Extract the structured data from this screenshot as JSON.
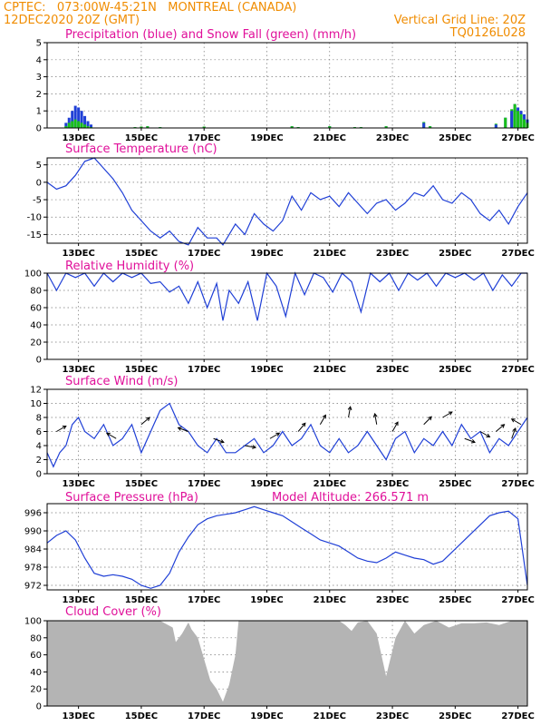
{
  "header": {
    "line1_left": "CPTEC:   073:00W-45:21N   MONTREAL (CANADA)",
    "line2_left": "12DEC2020 20Z (GMT)",
    "line2_right": "Vertical Grid Line: 20Z",
    "line3_right": "TQ0126L028"
  },
  "colors": {
    "header": "#f08c00",
    "title": "#e0109a",
    "line": "#1f3fd6",
    "precip": "#1f3fd6",
    "snow": "#18c018",
    "cloud": "#b4b4b4",
    "arrow": "#000000"
  },
  "x_ticks": [
    "13DEC",
    "15DEC",
    "17DEC",
    "19DEC",
    "21DEC",
    "23DEC",
    "25DEC",
    "27DEC"
  ],
  "chart_data": [
    {
      "type": "bar",
      "title": "Precipitation (blue) and Snow Fall (green) (mm/h)",
      "ylim": [
        0,
        5
      ],
      "yticks": [
        "0",
        "1",
        "2",
        "3",
        "4",
        "5"
      ],
      "x": [
        0.6,
        0.7,
        0.8,
        0.9,
        1.0,
        1.1,
        1.2,
        1.3,
        1.4,
        2.8,
        3.0,
        3.2,
        3.6,
        5.0,
        7.8,
        8.0,
        9.0,
        9.8,
        10.0,
        10.8,
        12.0,
        12.2,
        14.3,
        14.6,
        14.8,
        14.9,
        15.0,
        15.1,
        15.2,
        15.3
      ],
      "series": [
        {
          "name": "Precipitation",
          "values": [
            0.3,
            0.6,
            1.0,
            1.3,
            1.2,
            1.0,
            0.7,
            0.4,
            0.2,
            0.05,
            0.08,
            0.1,
            0.05,
            0.08,
            0.1,
            0.05,
            0.1,
            0.05,
            0.05,
            0.1,
            0.3,
            0.1,
            0.2,
            0.6,
            1.0,
            1.4,
            1.2,
            1.0,
            0.8,
            0.5
          ]
        },
        {
          "name": "Snow Fall",
          "values": [
            0.1,
            0.3,
            0.4,
            0.5,
            0.4,
            0.3,
            0.2,
            0.1,
            0.05,
            0.05,
            0.08,
            0.1,
            0.05,
            0.08,
            0.1,
            0.05,
            0.1,
            0.05,
            0.05,
            0.1,
            0.35,
            0.1,
            0.25,
            0.6,
            1.1,
            1.4,
            1.0,
            0.8,
            0.5,
            0.3
          ]
        }
      ]
    },
    {
      "type": "line",
      "title": "Surface Temperature (nC)",
      "ylim": [
        -17.5,
        7
      ],
      "yticks": [
        "5",
        "0",
        "-5",
        "-10",
        "-15"
      ],
      "x": [
        0.0,
        0.3,
        0.6,
        0.9,
        1.2,
        1.5,
        1.8,
        2.1,
        2.4,
        2.7,
        3.0,
        3.3,
        3.6,
        3.9,
        4.2,
        4.5,
        4.8,
        5.1,
        5.4,
        5.6,
        5.8,
        6.0,
        6.3,
        6.6,
        6.9,
        7.2,
        7.5,
        7.8,
        8.1,
        8.4,
        8.7,
        9.0,
        9.3,
        9.6,
        9.9,
        10.2,
        10.5,
        10.8,
        11.1,
        11.4,
        11.7,
        12.0,
        12.3,
        12.6,
        12.9,
        13.2,
        13.5,
        13.8,
        14.1,
        14.4,
        14.7,
        15.0,
        15.3
      ],
      "values": [
        0,
        -2,
        -1,
        2,
        6,
        7,
        4,
        1,
        -3,
        -8,
        -11,
        -14,
        -16,
        -14,
        -17,
        -18,
        -13,
        -16,
        -16,
        -18,
        -15,
        -12,
        -15,
        -9,
        -12,
        -14,
        -11,
        -4,
        -8,
        -3,
        -5,
        -4,
        -7,
        -3,
        -6,
        -9,
        -6,
        -5,
        -8,
        -6,
        -3,
        -4,
        -1,
        -5,
        -6,
        -3,
        -5,
        -9,
        -11,
        -8,
        -12,
        -7,
        -3
      ]
    },
    {
      "type": "line",
      "title": "Relative Humidity (%)",
      "ylim": [
        0,
        100
      ],
      "yticks": [
        "0",
        "20",
        "40",
        "60",
        "80",
        "100"
      ],
      "x": [
        0.0,
        0.3,
        0.6,
        0.9,
        1.2,
        1.5,
        1.8,
        2.1,
        2.4,
        2.7,
        3.0,
        3.3,
        3.6,
        3.9,
        4.2,
        4.5,
        4.8,
        5.1,
        5.4,
        5.6,
        5.8,
        6.1,
        6.4,
        6.7,
        7.0,
        7.3,
        7.6,
        7.9,
        8.2,
        8.5,
        8.8,
        9.1,
        9.4,
        9.7,
        10.0,
        10.3,
        10.6,
        10.9,
        11.2,
        11.5,
        11.8,
        12.1,
        12.4,
        12.7,
        13.0,
        13.3,
        13.6,
        13.9,
        14.2,
        14.5,
        14.8,
        15.1,
        15.3
      ],
      "values": [
        100,
        80,
        100,
        95,
        100,
        85,
        100,
        90,
        100,
        95,
        100,
        88,
        90,
        78,
        85,
        65,
        90,
        60,
        88,
        45,
        80,
        65,
        90,
        45,
        100,
        85,
        50,
        100,
        75,
        100,
        95,
        78,
        100,
        90,
        55,
        100,
        90,
        100,
        80,
        100,
        92,
        100,
        85,
        100,
        95,
        100,
        92,
        100,
        80,
        98,
        85,
        100,
        100
      ]
    },
    {
      "type": "line",
      "title": "Surface Wind (m/s)",
      "ylim": [
        0,
        12
      ],
      "yticks": [
        "0",
        "2",
        "4",
        "6",
        "8",
        "10",
        "12"
      ],
      "x": [
        0.0,
        0.2,
        0.4,
        0.6,
        0.8,
        1.0,
        1.2,
        1.5,
        1.8,
        2.1,
        2.4,
        2.7,
        3.0,
        3.3,
        3.6,
        3.9,
        4.2,
        4.5,
        4.8,
        5.1,
        5.4,
        5.7,
        6.0,
        6.3,
        6.6,
        6.9,
        7.2,
        7.5,
        7.8,
        8.1,
        8.4,
        8.7,
        9.0,
        9.3,
        9.6,
        9.9,
        10.2,
        10.5,
        10.8,
        11.1,
        11.4,
        11.7,
        12.0,
        12.3,
        12.6,
        12.9,
        13.2,
        13.5,
        13.8,
        14.1,
        14.4,
        14.7,
        15.0,
        15.3
      ],
      "values": [
        3,
        1,
        3,
        4,
        7,
        8,
        6,
        5,
        7,
        4,
        5,
        7,
        3,
        6,
        9,
        10,
        7,
        6,
        4,
        3,
        5,
        3,
        3,
        4,
        5,
        3,
        4,
        6,
        4,
        5,
        7,
        4,
        3,
        5,
        3,
        4,
        6,
        4,
        2,
        5,
        6,
        3,
        5,
        4,
        6,
        4,
        7,
        5,
        6,
        3,
        5,
        4,
        6,
        8
      ]
    },
    {
      "type": "line",
      "title": "Surface Pressure (hPa)",
      "annotation": "Model Altitude: 266.571 m",
      "ylim": [
        970.5,
        999
      ],
      "yticks": [
        "996",
        "990",
        "984",
        "978",
        "972"
      ],
      "x": [
        0.0,
        0.3,
        0.6,
        0.9,
        1.2,
        1.5,
        1.8,
        2.1,
        2.4,
        2.7,
        3.0,
        3.3,
        3.6,
        3.9,
        4.2,
        4.5,
        4.8,
        5.1,
        5.4,
        5.7,
        6.0,
        6.3,
        6.6,
        6.9,
        7.2,
        7.5,
        7.8,
        8.1,
        8.4,
        8.7,
        9.0,
        9.3,
        9.6,
        9.9,
        10.2,
        10.5,
        10.8,
        11.1,
        11.4,
        11.7,
        12.0,
        12.3,
        12.6,
        12.9,
        13.2,
        13.5,
        13.8,
        14.1,
        14.4,
        14.7,
        15.0,
        15.3
      ],
      "values": [
        986,
        988.5,
        990,
        987,
        981,
        976,
        975,
        975.5,
        975,
        974,
        972,
        971,
        972,
        976,
        983,
        988,
        992,
        994,
        995,
        995.5,
        996,
        997,
        998,
        997,
        996,
        995,
        993,
        991,
        989,
        987,
        986,
        985,
        983,
        981,
        980,
        979.5,
        981,
        983,
        982,
        981,
        980.5,
        979,
        980,
        983,
        986,
        989,
        992,
        995,
        996,
        996.5,
        994,
        972
      ]
    },
    {
      "type": "area",
      "title": "Cloud Cover (%)",
      "ylim": [
        0,
        100
      ],
      "yticks": [
        "0",
        "20",
        "40",
        "60",
        "80",
        "100"
      ],
      "x": [
        0.0,
        0.8,
        1.6,
        2.4,
        3.2,
        3.6,
        4.0,
        4.1,
        4.3,
        4.5,
        4.6,
        4.8,
        5.0,
        5.2,
        5.4,
        5.6,
        5.8,
        6.0,
        6.1,
        6.3,
        6.6,
        6.9,
        7.2,
        7.5,
        7.8,
        8.2,
        8.6,
        9.0,
        9.3,
        9.5,
        9.7,
        9.9,
        10.2,
        10.5,
        10.8,
        11.1,
        11.4,
        11.7,
        12.0,
        12.4,
        12.8,
        13.2,
        13.6,
        14.0,
        14.4,
        14.8,
        15.3
      ],
      "values": [
        100,
        100,
        100,
        100,
        100,
        100,
        92,
        75,
        85,
        98,
        90,
        80,
        55,
        30,
        20,
        5,
        25,
        60,
        100,
        100,
        100,
        100,
        100,
        100,
        100,
        100,
        100,
        100,
        100,
        95,
        88,
        98,
        100,
        85,
        35,
        80,
        100,
        85,
        95,
        100,
        92,
        97,
        97,
        98,
        95,
        100,
        100
      ]
    }
  ]
}
